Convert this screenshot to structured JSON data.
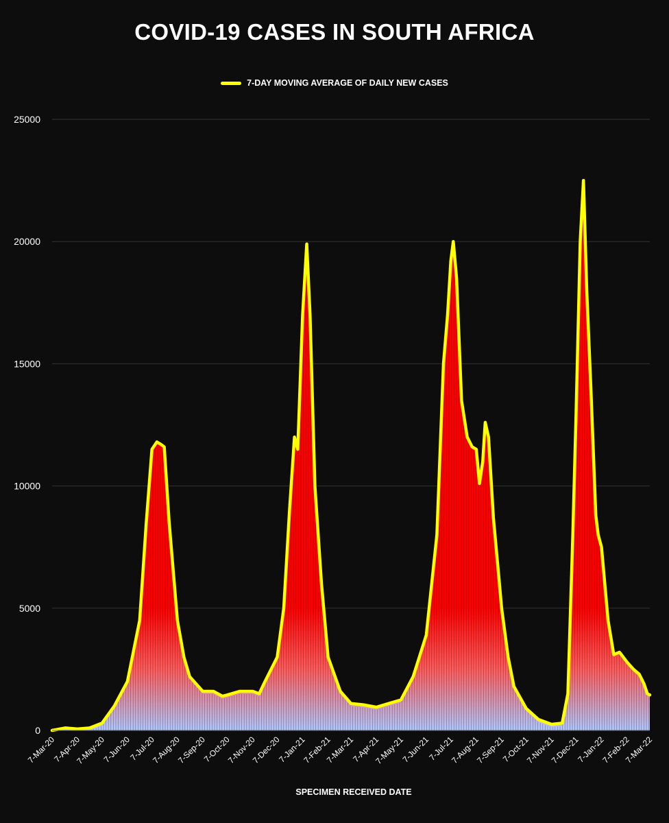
{
  "chart_data": {
    "type": "area",
    "title": "COVID-19 CASES IN SOUTH AFRICA",
    "xlabel": "SPECIMEN RECEIVED DATE",
    "ylabel": "",
    "ylim": [
      0,
      25000
    ],
    "yticks": [
      0,
      5000,
      10000,
      15000,
      20000,
      25000
    ],
    "grid": true,
    "legend": "top-center",
    "colors": {
      "background": "#0d0d0d",
      "bars": "#ff0000",
      "line": "#ffff00",
      "bar_base": "#b0c8ff",
      "grid": "#333333"
    },
    "x": [
      "7-Mar-20",
      "7-Apr-20",
      "7-May-20",
      "7-Jun-20",
      "7-Jul-20",
      "7-Aug-20",
      "7-Sep-20",
      "7-Oct-20",
      "7-Nov-20",
      "7-Dec-20",
      "7-Jan-21",
      "7-Feb-21",
      "7-Mar-21",
      "7-Apr-21",
      "7-May-21",
      "7-Jun-21",
      "7-Jul-21",
      "7-Aug-21",
      "7-Sep-21",
      "7-Oct-21",
      "7-Nov-21",
      "7-Dec-21",
      "7-Jan-22",
      "7-Feb-22",
      "7-Mar-22"
    ],
    "series": [
      {
        "name": "7-DAY MOVING AVERAGE OF DAILY NEW CASES",
        "points": [
          [
            "7-Mar-20",
            0
          ],
          [
            "23-Mar-20",
            100
          ],
          [
            "7-Apr-20",
            60
          ],
          [
            "22-Apr-20",
            100
          ],
          [
            "7-May-20",
            300
          ],
          [
            "22-May-20",
            1000
          ],
          [
            "7-Jun-20",
            2000
          ],
          [
            "22-Jun-20",
            4500
          ],
          [
            "30-Jun-20",
            8500
          ],
          [
            "7-Jul-20",
            11500
          ],
          [
            "13-Jul-20",
            11800
          ],
          [
            "18-Jul-20",
            11700
          ],
          [
            "22-Jul-20",
            11600
          ],
          [
            "28-Jul-20",
            8500
          ],
          [
            "7-Aug-20",
            4500
          ],
          [
            "15-Aug-20",
            3000
          ],
          [
            "22-Aug-20",
            2200
          ],
          [
            "7-Sep-20",
            1600
          ],
          [
            "20-Sep-20",
            1600
          ],
          [
            "1-Oct-20",
            1400
          ],
          [
            "7-Oct-20",
            1450
          ],
          [
            "22-Oct-20",
            1600
          ],
          [
            "7-Nov-20",
            1600
          ],
          [
            "15-Nov-20",
            1500
          ],
          [
            "22-Nov-20",
            2000
          ],
          [
            "7-Dec-20",
            3000
          ],
          [
            "15-Dec-20",
            5000
          ],
          [
            "22-Dec-20",
            9000
          ],
          [
            "28-Dec-20",
            12000
          ],
          [
            "1-Jan-21",
            11500
          ],
          [
            "7-Jan-21",
            17000
          ],
          [
            "12-Jan-21",
            19900
          ],
          [
            "16-Jan-21",
            17000
          ],
          [
            "22-Jan-21",
            10000
          ],
          [
            "30-Jan-21",
            6000
          ],
          [
            "7-Feb-21",
            3000
          ],
          [
            "22-Feb-21",
            1600
          ],
          [
            "7-Mar-21",
            1100
          ],
          [
            "22-Mar-21",
            1050
          ],
          [
            "7-Apr-21",
            950
          ],
          [
            "22-Apr-21",
            1100
          ],
          [
            "7-May-21",
            1250
          ],
          [
            "22-May-21",
            2200
          ],
          [
            "7-Jun-21",
            3900
          ],
          [
            "20-Jun-21",
            8000
          ],
          [
            "28-Jun-21",
            15000
          ],
          [
            "3-Jul-21",
            17000
          ],
          [
            "7-Jul-21",
            19200
          ],
          [
            "10-Jul-21",
            20000
          ],
          [
            "14-Jul-21",
            18500
          ],
          [
            "20-Jul-21",
            13500
          ],
          [
            "27-Jul-21",
            12000
          ],
          [
            "2-Aug-21",
            11600
          ],
          [
            "7-Aug-21",
            11500
          ],
          [
            "11-Aug-21",
            10100
          ],
          [
            "15-Aug-21",
            11000
          ],
          [
            "18-Aug-21",
            12600
          ],
          [
            "22-Aug-21",
            12000
          ],
          [
            "28-Aug-21",
            8700
          ],
          [
            "3-Sep-21",
            6500
          ],
          [
            "7-Sep-21",
            5000
          ],
          [
            "15-Sep-21",
            3000
          ],
          [
            "22-Sep-21",
            1800
          ],
          [
            "7-Oct-21",
            900
          ],
          [
            "22-Oct-21",
            450
          ],
          [
            "7-Nov-21",
            250
          ],
          [
            "20-Nov-21",
            300
          ],
          [
            "27-Nov-21",
            1500
          ],
          [
            "3-Dec-21",
            8000
          ],
          [
            "7-Dec-21",
            13000
          ],
          [
            "12-Dec-21",
            20000
          ],
          [
            "16-Dec-21",
            22500
          ],
          [
            "20-Dec-21",
            18000
          ],
          [
            "25-Dec-21",
            14000
          ],
          [
            "31-Dec-21",
            8800
          ],
          [
            "3-Jan-22",
            8000
          ],
          [
            "7-Jan-22",
            7500
          ],
          [
            "15-Jan-22",
            4500
          ],
          [
            "22-Jan-22",
            3100
          ],
          [
            "29-Jan-22",
            3200
          ],
          [
            "7-Feb-22",
            2800
          ],
          [
            "15-Feb-22",
            2500
          ],
          [
            "22-Feb-22",
            2300
          ],
          [
            "28-Feb-22",
            1900
          ],
          [
            "4-Mar-22",
            1500
          ],
          [
            "7-Mar-22",
            1450
          ]
        ]
      }
    ]
  }
}
